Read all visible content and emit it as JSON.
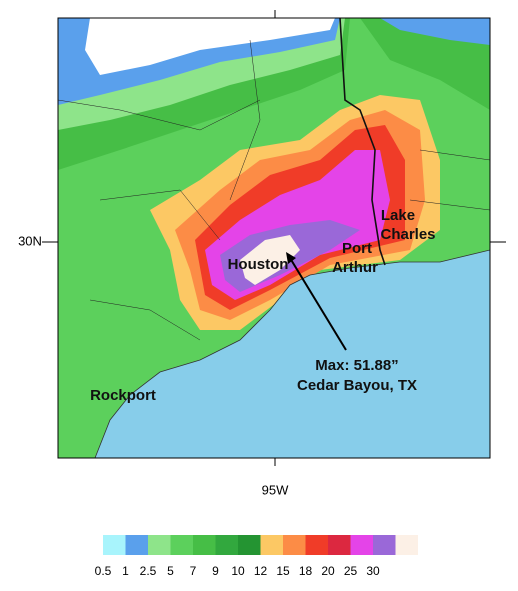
{
  "map": {
    "lat_label": "30N",
    "lon_label": "95W",
    "places": [
      {
        "lines": [
          "Houston"
        ]
      },
      {
        "lines": [
          "Port",
          "Arthur"
        ]
      },
      {
        "lines": [
          "Lake",
          "Charles"
        ]
      },
      {
        "lines": [
          "Rockport"
        ]
      }
    ],
    "annotation": {
      "lines": [
        "Max: 51.88”",
        "Cedar Bayou, TX"
      ]
    },
    "legend": {
      "levels": [
        0.5,
        1,
        2.5,
        5,
        7,
        9,
        10,
        12,
        15,
        18,
        20,
        25,
        30
      ],
      "colors": [
        "#a8f4fc",
        "#5aa0ec",
        "#8ee48a",
        "#5cd05c",
        "#46be46",
        "#32a83e",
        "#249432",
        "#fcc864",
        "#fc8c46",
        "#f03c28",
        "#dc2840",
        "#e444e8",
        "#9a68d8",
        "#fcf0e6"
      ]
    }
  }
}
